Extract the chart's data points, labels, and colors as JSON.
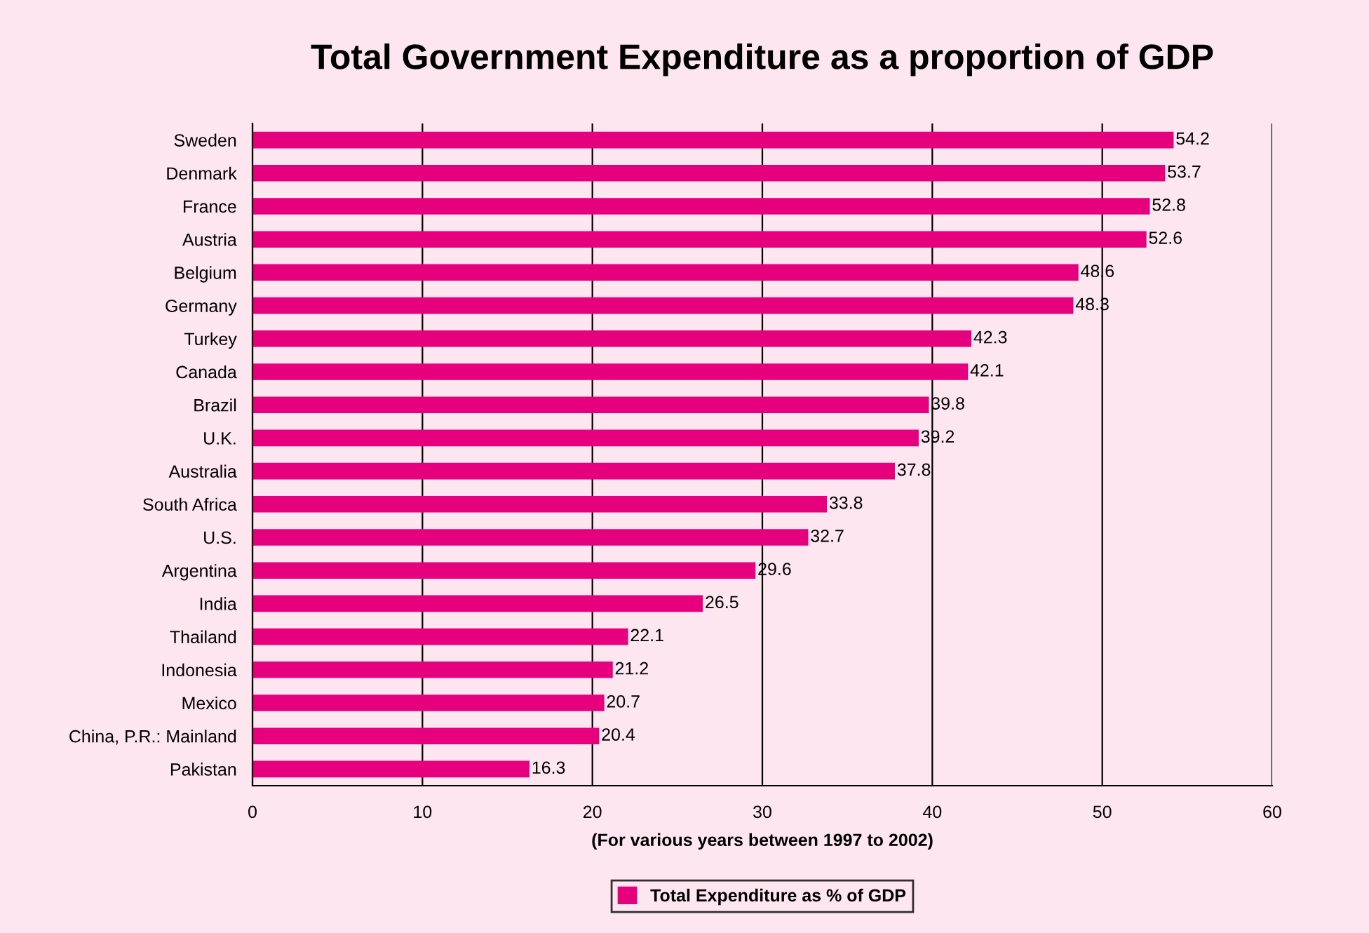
{
  "chart_data": {
    "type": "bar",
    "orientation": "horizontal",
    "title": "Total Government Expenditure as a proportion of GDP",
    "xlabel": "(For various years between 1997 to 2002)",
    "categories": [
      "Sweden",
      "Denmark",
      "France",
      "Austria",
      "Belgium",
      "Germany",
      "Turkey",
      "Canada",
      "Brazil",
      "U.K.",
      "Australia",
      "South Africa",
      "U.S.",
      "Argentina",
      "India",
      "Thailand",
      "Indonesia",
      "Mexico",
      "China, P.R.: Mainland",
      "Pakistan"
    ],
    "series": [
      {
        "name": "Total Expenditure as % of GDP",
        "color": "#e6007e",
        "values": [
          54.2,
          53.7,
          52.8,
          52.6,
          48.6,
          48.3,
          42.3,
          42.1,
          39.8,
          39.2,
          37.8,
          33.8,
          32.7,
          29.6,
          26.5,
          22.1,
          21.2,
          20.7,
          20.4,
          16.3
        ]
      }
    ],
    "xlim": [
      0,
      60
    ],
    "xticks": [
      0,
      10,
      20,
      30,
      40,
      50,
      60
    ],
    "grid": "x",
    "legend": "bottom",
    "data_labels": true
  }
}
